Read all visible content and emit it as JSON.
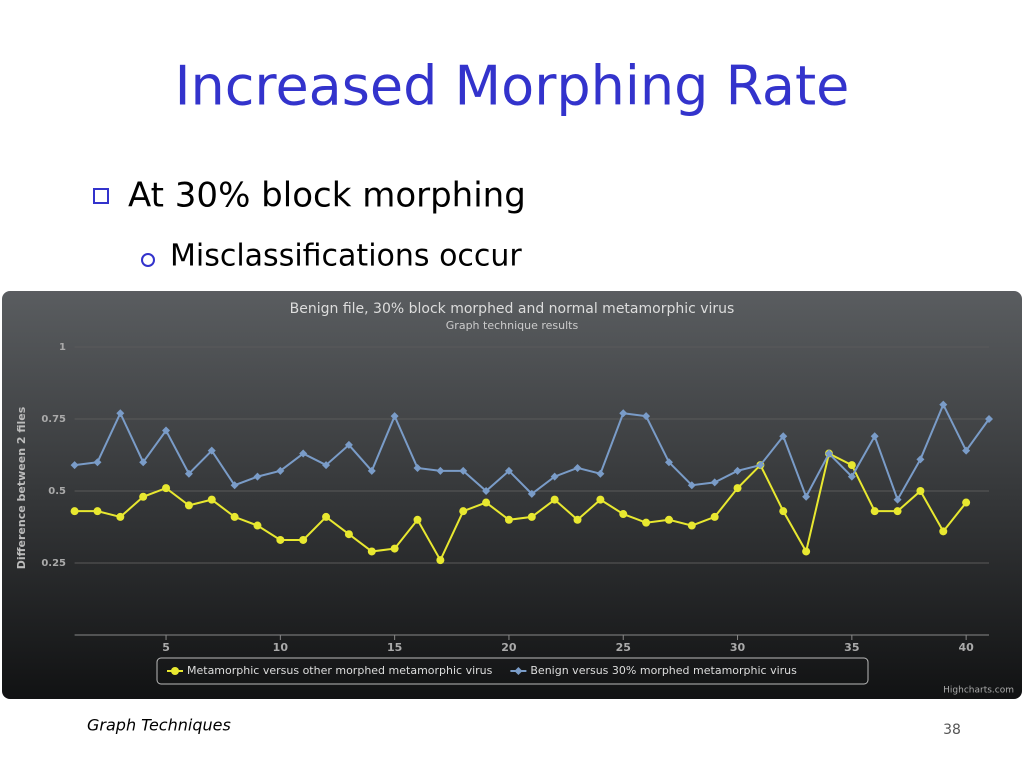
{
  "slide": {
    "title": "Increased Morphing Rate",
    "bullet": "At 30% block morphing",
    "sub_bullet": "Misclassifications occur",
    "footer": "Graph Techniques",
    "page_number": "38"
  },
  "chart_data": {
    "type": "line",
    "title": "Benign file, 30% block morphed and normal metamorphic virus",
    "subtitle": "Graph technique results",
    "y_label": "Difference between 2 files",
    "credits": "Highcharts.com",
    "x": [
      1,
      2,
      3,
      4,
      5,
      6,
      7,
      8,
      9,
      10,
      11,
      12,
      13,
      14,
      15,
      16,
      17,
      18,
      19,
      20,
      21,
      22,
      23,
      24,
      25,
      26,
      27,
      28,
      29,
      30,
      31,
      32,
      33,
      34,
      35,
      36,
      37,
      38,
      39,
      40,
      41
    ],
    "xlim": [
      1,
      41
    ],
    "xticks": [
      5,
      10,
      15,
      20,
      25,
      30,
      35,
      40
    ],
    "ylim": [
      0,
      1
    ],
    "yticks": [
      0.25,
      0.5,
      0.75,
      1
    ],
    "grid": true,
    "series": [
      {
        "name": "Metamorphic versus other morphed metamorphic virus",
        "color": "#e8e830",
        "marker": "circle",
        "values": [
          0.43,
          0.43,
          0.41,
          0.48,
          0.51,
          0.45,
          0.47,
          0.41,
          0.38,
          0.33,
          0.33,
          0.41,
          0.35,
          0.29,
          0.3,
          0.4,
          0.26,
          0.43,
          0.46,
          0.4,
          0.41,
          0.47,
          0.4,
          0.47,
          0.42,
          0.39,
          0.4,
          0.38,
          0.41,
          0.51,
          0.59,
          0.43,
          0.29,
          0.63,
          0.59,
          0.43,
          0.43,
          0.5,
          0.36,
          0.46,
          null
        ]
      },
      {
        "name": "Benign versus 30% morphed metamorphic virus",
        "color": "#7a9cc8",
        "marker": "diamond",
        "values": [
          0.59,
          0.6,
          0.77,
          0.6,
          0.71,
          0.56,
          0.64,
          0.52,
          0.55,
          0.57,
          0.63,
          0.59,
          0.66,
          0.57,
          0.76,
          0.58,
          0.57,
          0.57,
          0.5,
          0.57,
          0.49,
          0.55,
          0.58,
          0.56,
          0.77,
          0.76,
          0.6,
          0.52,
          0.53,
          0.57,
          0.59,
          0.69,
          0.48,
          0.63,
          0.55,
          0.69,
          0.47,
          0.61,
          0.8,
          0.64,
          0.75
        ]
      }
    ]
  }
}
